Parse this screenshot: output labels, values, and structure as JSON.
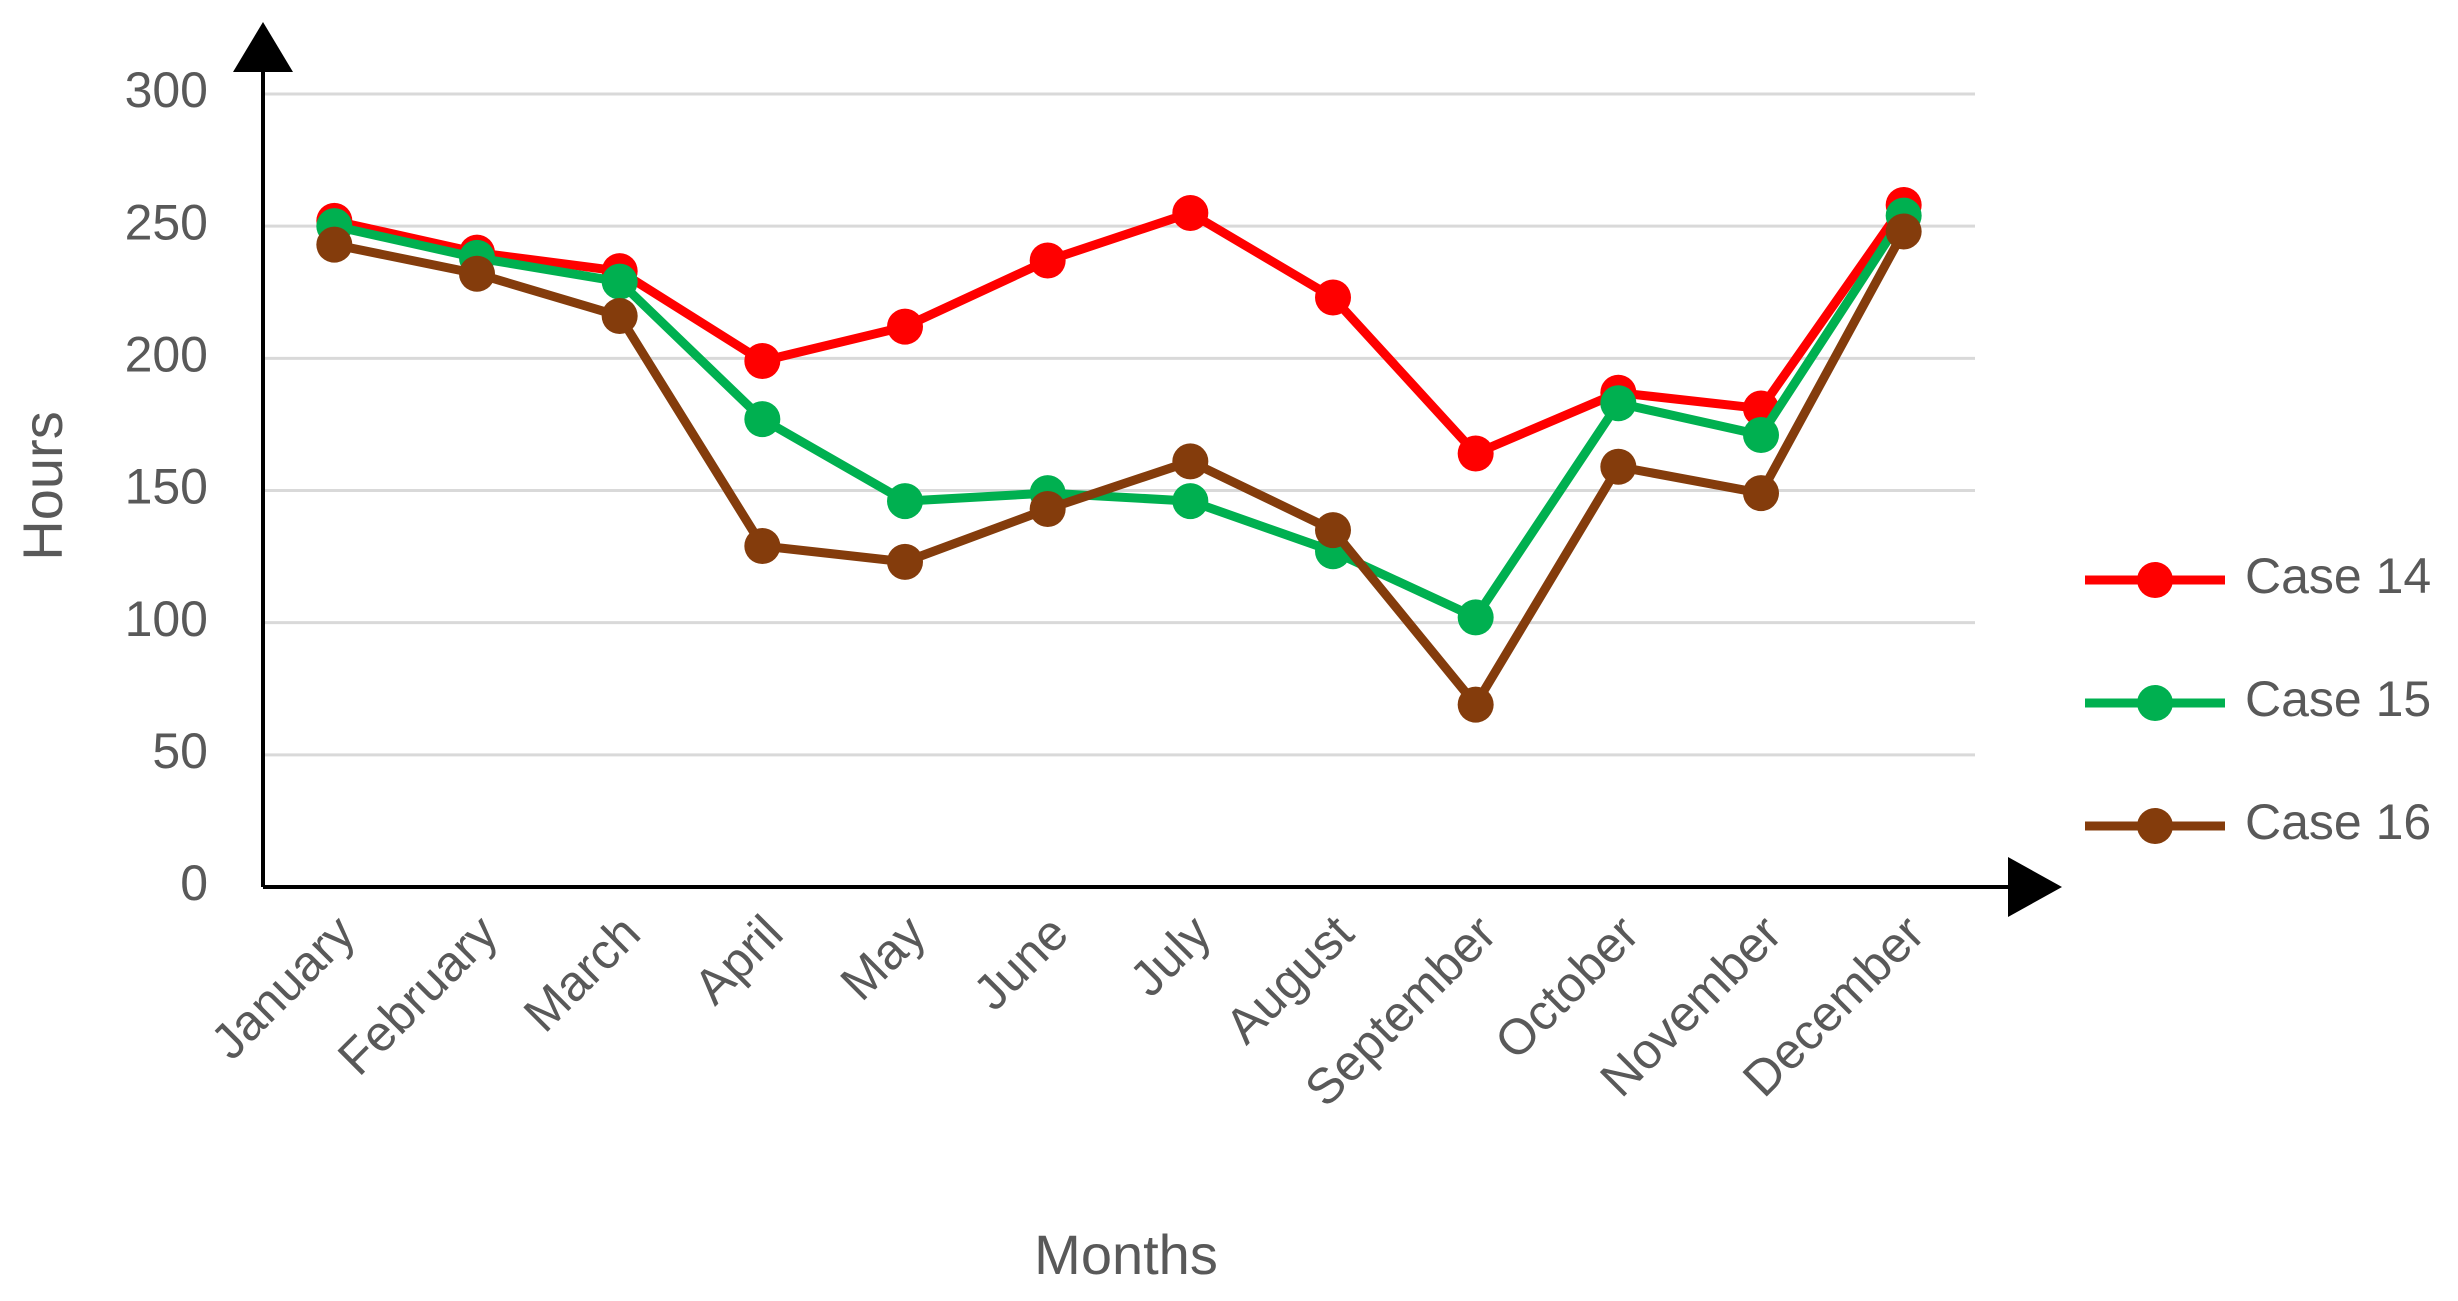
{
  "chart_data": {
    "type": "line",
    "x_label": "Months",
    "y_label": "Hours",
    "categories": [
      "January",
      "February",
      "March",
      "April",
      "May",
      "June",
      "July",
      "August",
      "September",
      "October",
      "November",
      "December"
    ],
    "series": [
      {
        "name": "Case 14",
        "color": "#ff0000",
        "values": [
          252,
          240,
          233,
          199,
          212,
          237,
          255,
          223,
          164,
          187,
          181,
          258
        ]
      },
      {
        "name": "Case 15",
        "color": "#00b050",
        "values": [
          250,
          238,
          229,
          177,
          146,
          149,
          146,
          127,
          102,
          183,
          171,
          254
        ]
      },
      {
        "name": "Case 16",
        "color": "#843c0c",
        "values": [
          243,
          232,
          216,
          129,
          123,
          143,
          161,
          135,
          69,
          159,
          149,
          248
        ]
      }
    ],
    "ylim": [
      0,
      300
    ],
    "yticks": [
      0,
      50,
      100,
      150,
      200,
      250,
      300
    ],
    "grid": true,
    "legend": "right"
  }
}
